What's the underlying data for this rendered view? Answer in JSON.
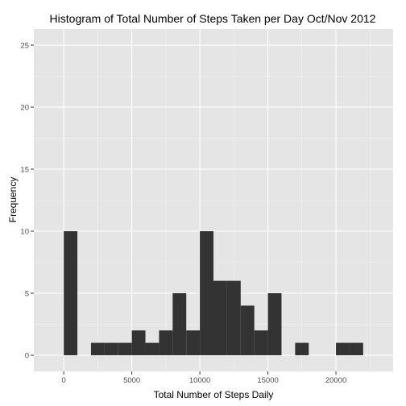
{
  "chart_data": {
    "type": "bar",
    "subtype": "histogram",
    "title": "Histogram of Total Number of Steps Taken per Day Oct/Nov 2012",
    "xlabel": "Total Number of Steps Daily",
    "ylabel": "Frequency",
    "xlim": [
      -2200,
      24200
    ],
    "ylim": [
      -1.3,
      26.3
    ],
    "x_ticks": [
      0,
      5000,
      10000,
      15000,
      20000
    ],
    "x_tick_labels": [
      "0",
      "5000",
      "10000",
      "15000",
      "20000"
    ],
    "y_ticks": [
      0,
      5,
      10,
      15,
      20,
      25
    ],
    "y_tick_labels": [
      "0",
      "5",
      "10",
      "15",
      "20",
      "25"
    ],
    "bin_width": 1000,
    "bins": [
      {
        "x0": 0,
        "x1": 1000,
        "count": 10
      },
      {
        "x0": 1000,
        "x1": 2000,
        "count": 0
      },
      {
        "x0": 2000,
        "x1": 3000,
        "count": 1
      },
      {
        "x0": 3000,
        "x1": 4000,
        "count": 1
      },
      {
        "x0": 4000,
        "x1": 5000,
        "count": 1
      },
      {
        "x0": 5000,
        "x1": 6000,
        "count": 2
      },
      {
        "x0": 6000,
        "x1": 7000,
        "count": 1
      },
      {
        "x0": 7000,
        "x1": 8000,
        "count": 2
      },
      {
        "x0": 8000,
        "x1": 9000,
        "count": 5
      },
      {
        "x0": 9000,
        "x1": 10000,
        "count": 2
      },
      {
        "x0": 10000,
        "x1": 11000,
        "count": 10
      },
      {
        "x0": 11000,
        "x1": 12000,
        "count": 6
      },
      {
        "x0": 12000,
        "x1": 13000,
        "count": 6
      },
      {
        "x0": 13000,
        "x1": 14000,
        "count": 4
      },
      {
        "x0": 14000,
        "x1": 15000,
        "count": 2
      },
      {
        "x0": 15000,
        "x1": 16000,
        "count": 5
      },
      {
        "x0": 16000,
        "x1": 17000,
        "count": 0
      },
      {
        "x0": 17000,
        "x1": 18000,
        "count": 1
      },
      {
        "x0": 18000,
        "x1": 19000,
        "count": 0
      },
      {
        "x0": 19000,
        "x1": 20000,
        "count": 0
      },
      {
        "x0": 20000,
        "x1": 21000,
        "count": 1
      },
      {
        "x0": 21000,
        "x1": 22000,
        "count": 1
      }
    ],
    "grid": true,
    "legend": "none",
    "colors": {
      "panel_background": "#e5e5e5",
      "grid_major": "#ffffff",
      "grid_minor": "#f2f2f2",
      "bar_fill": "#333333",
      "tick_text": "#4d4d4d"
    }
  }
}
